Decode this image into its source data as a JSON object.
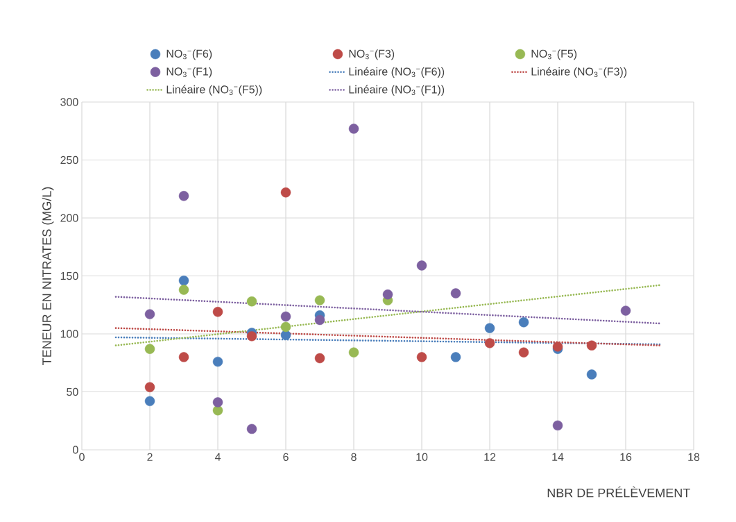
{
  "chart_data": {
    "type": "scatter",
    "xlabel": "NBR DE PRÉLÈVEMENT",
    "ylabel": "TENEUR EN  NITRATES (MG/L)",
    "xlim": [
      0,
      18
    ],
    "ylim": [
      0,
      300
    ],
    "xticks": [
      0,
      2,
      4,
      6,
      8,
      10,
      12,
      14,
      16,
      18
    ],
    "yticks": [
      0,
      50,
      100,
      150,
      200,
      250,
      300
    ],
    "grid": true,
    "legend": "top",
    "marker": "circle",
    "series": [
      {
        "name": "NO$_{3}$$^{−}$(F6)",
        "color": "#4a7ebb",
        "x": [
          2,
          3,
          4,
          5,
          6,
          7,
          11,
          12,
          13,
          14,
          15
        ],
        "values": [
          42,
          146,
          76,
          101,
          99,
          116,
          80,
          105,
          110,
          87,
          65
        ]
      },
      {
        "name": "NO$_{3}$$^{−}$(F3)",
        "color": "#be4b48",
        "x": [
          2,
          3,
          4,
          5,
          6,
          7,
          10,
          12,
          13,
          14,
          15
        ],
        "values": [
          54,
          80,
          119,
          98,
          222,
          79,
          80,
          92,
          84,
          89,
          90
        ]
      },
      {
        "name": "NO$_{3}$$^{−}$(F5)",
        "color": "#98b954",
        "x": [
          2,
          3,
          4,
          5,
          6,
          7,
          8,
          9
        ],
        "values": [
          87,
          138,
          34,
          128,
          106,
          129,
          84,
          129
        ]
      },
      {
        "name": "NO$_{3}$$^{−}$(F1)",
        "color": "#7d60a0",
        "x": [
          2,
          3,
          4,
          5,
          6,
          7,
          8,
          9,
          10,
          11,
          14,
          16
        ],
        "values": [
          117,
          219,
          41,
          18,
          115,
          112,
          277,
          134,
          159,
          135,
          21,
          120
        ]
      },
      {
        "name": "Linéaire (NO$_{3}$$^{−}$(F6))",
        "type": "line",
        "marker": "none",
        "line_style": "dotted",
        "color": "#4a7ebb",
        "x": [
          1,
          17
        ],
        "values": [
          97,
          91
        ]
      },
      {
        "name": "Linéaire (NO$_{3}$$^{−}$(F3))",
        "type": "line",
        "marker": "none",
        "line_style": "dotted",
        "color": "#be4b48",
        "x": [
          1,
          17
        ],
        "values": [
          105,
          90
        ]
      },
      {
        "name": "Linéaire (NO$_{3}$$^{−}$(F5))",
        "type": "line",
        "marker": "none",
        "line_style": "dotted",
        "color": "#98b954",
        "x": [
          1,
          17
        ],
        "values": [
          90,
          142
        ]
      },
      {
        "name": "Linéaire (NO$_{3}$$^{−}$(F1))",
        "type": "line",
        "marker": "none",
        "line_style": "dotted",
        "color": "#7d60a0",
        "x": [
          1,
          17
        ],
        "values": [
          132,
          109
        ]
      }
    ]
  }
}
